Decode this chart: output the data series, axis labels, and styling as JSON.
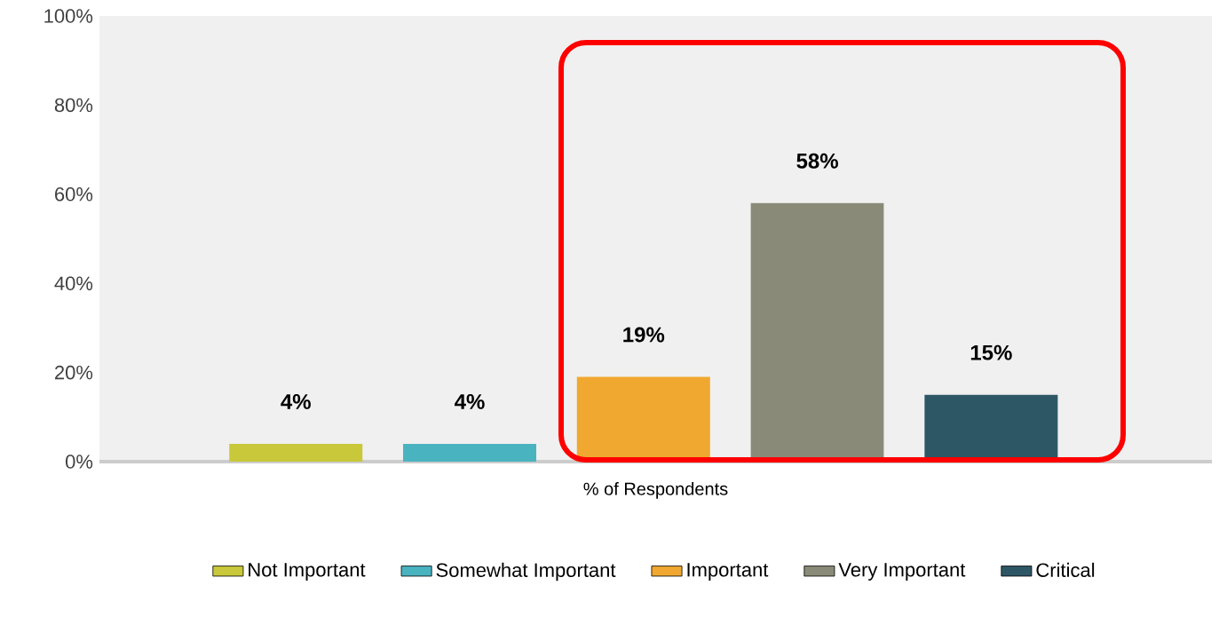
{
  "chart_data": {
    "type": "bar",
    "xlabel": "% of Respondents",
    "categories": [
      null,
      null,
      null,
      null,
      null
    ],
    "series": [
      {
        "name": "Not Important",
        "color": "#c8c83a",
        "values": [
          4,
          null,
          null,
          null,
          null
        ],
        "value_labels": [
          "4%",
          null,
          null,
          null,
          null
        ]
      },
      {
        "name": "Somewhat Important",
        "color": "#4ab3c0",
        "values": [
          null,
          4,
          null,
          null,
          null
        ],
        "value_labels": [
          null,
          "4%",
          null,
          null,
          null
        ]
      },
      {
        "name": "Important",
        "color": "#f0a830",
        "values": [
          null,
          null,
          19,
          null,
          null
        ],
        "value_labels": [
          null,
          null,
          "19%",
          null,
          null
        ]
      },
      {
        "name": "Very Important",
        "color": "#8a8a78",
        "values": [
          null,
          null,
          null,
          58,
          null
        ],
        "value_labels": [
          null,
          null,
          null,
          "58%",
          null
        ]
      },
      {
        "name": "Critical",
        "color": "#2e5766",
        "values": [
          null,
          null,
          null,
          null,
          15
        ],
        "value_labels": [
          null,
          null,
          null,
          null,
          "15%"
        ]
      }
    ],
    "ylim": [
      0,
      100
    ],
    "yticks": [
      {
        "value": 0,
        "label": "0%"
      },
      {
        "value": 20,
        "label": "20%"
      },
      {
        "value": 40,
        "label": "40%"
      },
      {
        "value": 60,
        "label": "60%"
      },
      {
        "value": 80,
        "label": "80%"
      },
      {
        "value": 100,
        "label": "100%"
      }
    ],
    "legend": "bottom"
  }
}
